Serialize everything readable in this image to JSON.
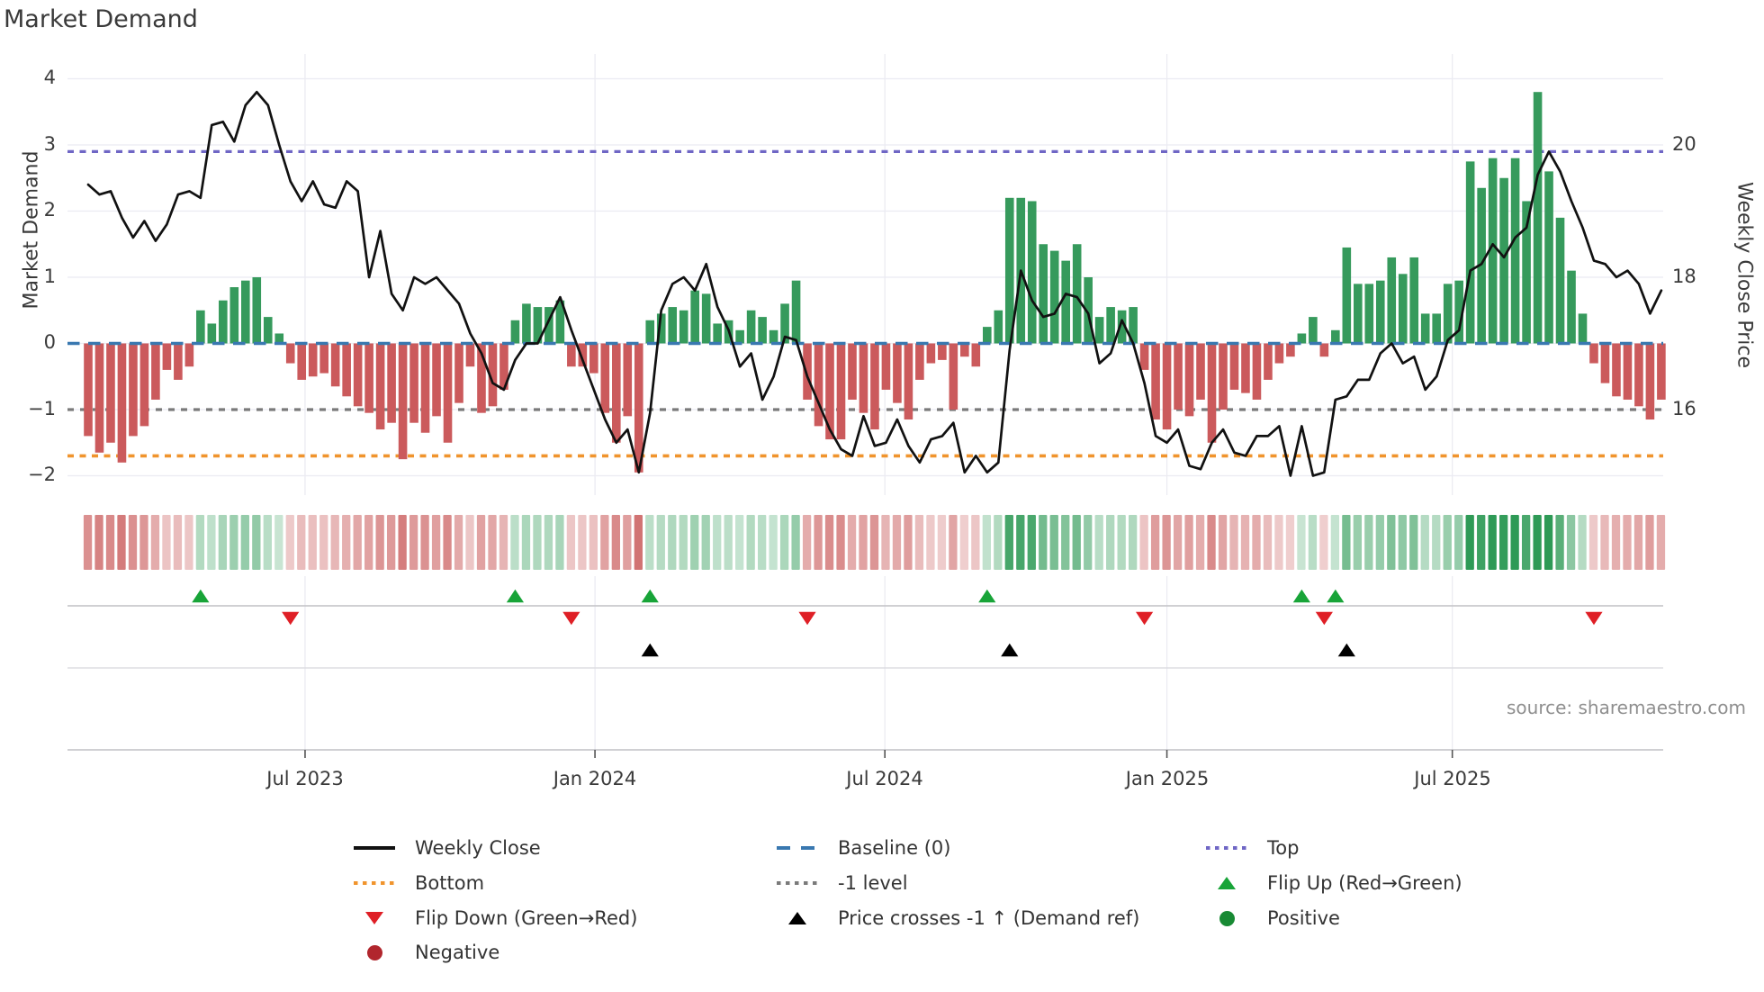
{
  "title": "Market Demand",
  "source_note": "source: sharemaestro.com",
  "left_axis": {
    "label": "Market Demand",
    "ticks": [
      "4",
      "3",
      "2",
      "1",
      "0",
      "−1",
      "−2"
    ],
    "tick_values": [
      4,
      3,
      2,
      1,
      0,
      -1,
      -2
    ]
  },
  "right_axis": {
    "label": "Weekly Close Price",
    "ticks": [
      "20",
      "18",
      "16"
    ],
    "tick_values": [
      20,
      18,
      16
    ]
  },
  "x_axis": {
    "ticks": [
      "Jul 2023",
      "Jan 2024",
      "Jul 2024",
      "Jan 2025",
      "Jul 2025"
    ],
    "tick_week_positions": [
      19.3,
      45.1,
      70.9,
      96.0,
      121.4
    ]
  },
  "legend": {
    "items": [
      {
        "label": "Weekly Close",
        "glyph": "line-black"
      },
      {
        "label": "Bottom",
        "glyph": "dot-orange"
      },
      {
        "label": "Flip Down (Green→Red)",
        "glyph": "triangle-down-red"
      },
      {
        "label": "Negative",
        "glyph": "circle-red"
      },
      {
        "label": "Baseline (0)",
        "glyph": "dash-blue"
      },
      {
        "label": "-1 level",
        "glyph": "dot-gray"
      },
      {
        "label": "Price crosses -1 ↑ (Demand ref)",
        "glyph": "triangle-up-black"
      },
      {
        "label": "Top",
        "glyph": "dot-purple"
      },
      {
        "label": "Flip Up (Red→Green)",
        "glyph": "triangle-up-green"
      },
      {
        "label": "Positive",
        "glyph": "circle-green"
      }
    ]
  },
  "colors": {
    "bar_positive": "#369a5c",
    "bar_negative": "#cb5a5c",
    "price_line": "#111111",
    "baseline": "#3978b0",
    "top_line": "#6f66c5",
    "bottom_line": "#f0942d",
    "minus1_line": "#7a7a7a",
    "flip_up_marker": "#18a438",
    "flip_down_marker": "#df1f26",
    "price_cross_marker": "#000000",
    "positive_dot": "#188a34",
    "negative_dot": "#b1262d",
    "heat_green": "#2e9a56",
    "heat_red": "#c65151",
    "grid": "#ebebf2"
  },
  "chart_data": {
    "type": "combo (weekly bar + line + heatmap + event markers)",
    "title": "Market Demand",
    "ylabel_left": "Market Demand",
    "ylabel_right": "Weekly Close Price",
    "ylim_left": [
      -2.3,
      4.37
    ],
    "x_tick_labels": [
      "Jul 2023",
      "Jan 2024",
      "Jul 2024",
      "Jan 2025",
      "Jul 2025"
    ],
    "levels": {
      "baseline": 0,
      "top": 2.9,
      "bottom": -1.7,
      "minus1": -1
    },
    "right_axis_offset_note": "right price axis aligned so price = demand + 17",
    "demand_bars": [
      -1.4,
      -1.65,
      -1.5,
      -1.8,
      -1.4,
      -1.25,
      -0.85,
      -0.4,
      -0.55,
      -0.35,
      0.5,
      0.3,
      0.65,
      0.85,
      0.95,
      1.0,
      0.4,
      0.15,
      -0.3,
      -0.55,
      -0.5,
      -0.45,
      -0.65,
      -0.8,
      -0.95,
      -1.05,
      -1.3,
      -1.2,
      -1.75,
      -1.2,
      -1.35,
      -1.1,
      -1.5,
      -0.9,
      -0.35,
      -1.05,
      -0.95,
      -0.7,
      0.35,
      0.6,
      0.55,
      0.55,
      0.65,
      -0.35,
      -0.35,
      -0.45,
      -1.05,
      -1.5,
      -1.1,
      -1.95,
      0.35,
      0.45,
      0.55,
      0.5,
      0.8,
      0.75,
      0.3,
      0.35,
      0.2,
      0.5,
      0.4,
      0.2,
      0.6,
      0.95,
      -0.85,
      -1.25,
      -1.45,
      -1.45,
      -0.85,
      -1.05,
      -1.3,
      -0.7,
      -0.9,
      -1.15,
      -0.55,
      -0.3,
      -0.25,
      -1.0,
      -0.2,
      -0.35,
      0.25,
      0.5,
      2.2,
      2.2,
      2.15,
      1.5,
      1.4,
      1.25,
      1.5,
      1.0,
      0.4,
      0.55,
      0.5,
      0.55,
      -0.4,
      -1.15,
      -1.3,
      -1.0,
      -1.1,
      -0.85,
      -1.5,
      -1.0,
      -0.7,
      -0.75,
      -0.85,
      -0.55,
      -0.3,
      -0.2,
      0.15,
      0.4,
      -0.2,
      0.2,
      1.45,
      0.9,
      0.9,
      0.95,
      1.3,
      1.05,
      1.3,
      0.45,
      0.45,
      0.9,
      0.95,
      2.75,
      2.35,
      2.8,
      2.5,
      2.8,
      2.15,
      3.8,
      2.6,
      1.9,
      1.1,
      0.45,
      -0.3,
      -0.6,
      -0.8,
      -0.85,
      -0.95,
      -1.15,
      -0.85
    ],
    "weekly_close": [
      19.4,
      19.25,
      19.3,
      18.9,
      18.6,
      18.85,
      18.55,
      18.8,
      19.25,
      19.3,
      19.2,
      20.3,
      20.35,
      20.05,
      20.6,
      20.8,
      20.6,
      20.0,
      19.45,
      19.15,
      19.45,
      19.1,
      19.05,
      19.45,
      19.3,
      18.0,
      18.7,
      17.75,
      17.5,
      18.0,
      17.9,
      18.0,
      17.8,
      17.6,
      17.15,
      16.85,
      16.4,
      16.3,
      16.75,
      17.0,
      17.0,
      17.35,
      17.7,
      17.2,
      16.75,
      16.3,
      15.85,
      15.5,
      15.7,
      15.05,
      15.95,
      17.5,
      17.9,
      18.0,
      17.8,
      18.2,
      17.55,
      17.2,
      16.65,
      16.85,
      16.15,
      16.5,
      17.1,
      17.05,
      16.5,
      16.1,
      15.7,
      15.4,
      15.3,
      15.9,
      15.45,
      15.5,
      15.85,
      15.45,
      15.2,
      15.55,
      15.6,
      15.8,
      15.05,
      15.3,
      15.05,
      15.2,
      16.9,
      18.1,
      17.65,
      17.4,
      17.45,
      17.75,
      17.7,
      17.45,
      16.7,
      16.85,
      17.35,
      17.0,
      16.4,
      15.6,
      15.5,
      15.7,
      15.15,
      15.1,
      15.5,
      15.7,
      15.35,
      15.3,
      15.6,
      15.6,
      15.75,
      15.0,
      15.75,
      15.0,
      15.05,
      16.15,
      16.2,
      16.45,
      16.45,
      16.85,
      17.0,
      16.7,
      16.8,
      16.3,
      16.5,
      17.05,
      17.2,
      18.1,
      18.2,
      18.5,
      18.3,
      18.6,
      18.75,
      19.55,
      19.9,
      19.6,
      19.15,
      18.75,
      18.25,
      18.2,
      18.0,
      18.1,
      17.9,
      17.45,
      17.8
    ],
    "flip_up_weeks": [
      10,
      38,
      50,
      80,
      108,
      111
    ],
    "flip_down_weeks": [
      18,
      43,
      64,
      94,
      110,
      134
    ],
    "price_cross_weeks": [
      50,
      82,
      112
    ]
  }
}
